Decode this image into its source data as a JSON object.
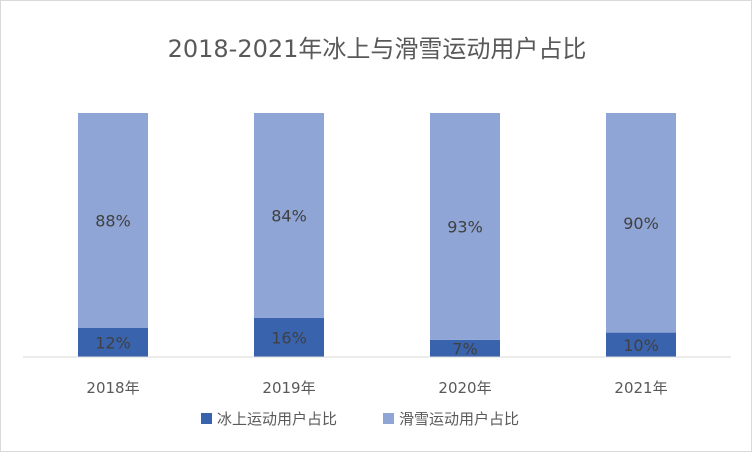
{
  "chart_data": {
    "type": "bar",
    "stacked": true,
    "percent_stacked": true,
    "title": "2018-2021年冰上与滑雪运动用户占比",
    "categories": [
      "2018年",
      "2019年",
      "2020年",
      "2021年"
    ],
    "series": [
      {
        "name": "冰上运动用户占比",
        "values": [
          12,
          16,
          7,
          10
        ],
        "labels": [
          "12%",
          "16%",
          "7%",
          "10%"
        ],
        "color": "#3a63ad"
      },
      {
        "name": "滑雪运动用户占比",
        "values": [
          88,
          84,
          93,
          90
        ],
        "labels": [
          "88%",
          "84%",
          "93%",
          "90%"
        ],
        "color": "#8fa5d6"
      }
    ],
    "ylim": [
      0,
      100
    ],
    "grid": false,
    "legend": "bottom"
  }
}
